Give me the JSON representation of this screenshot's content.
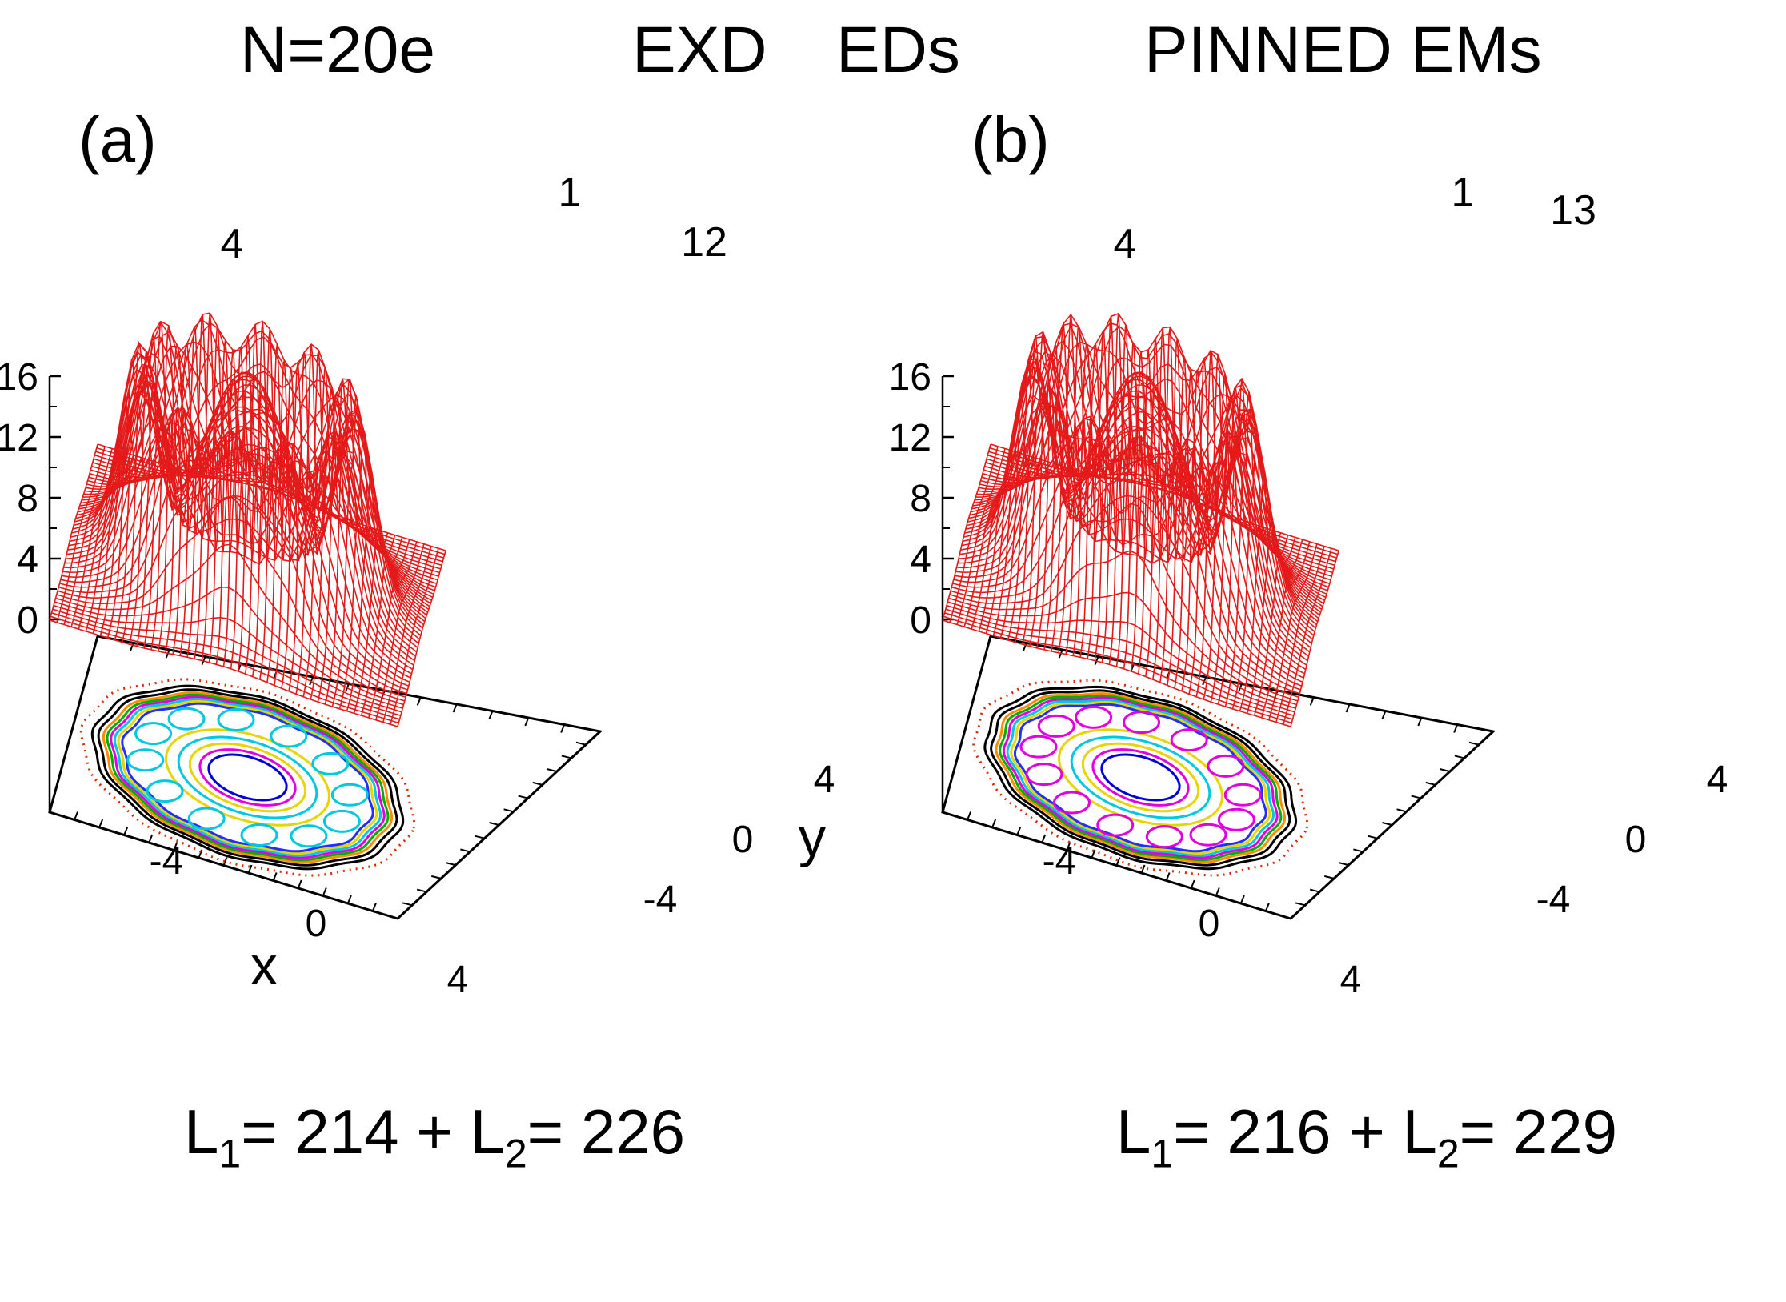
{
  "header": {
    "left": "N=20e",
    "middle_a": "EXD",
    "middle_b": "EDs",
    "right": "PINNED EMs"
  },
  "colors": {
    "surface": "#e41a1a",
    "contours": [
      "#d62b00",
      "#000000",
      "#e8d400",
      "#00c8e0",
      "#e000e0",
      "#0000dd",
      "#00b000",
      "#2030ff",
      "#ff8c00"
    ]
  },
  "chart_data": [
    {
      "type": "surface3d",
      "panel_label": "(a)",
      "zlim": [
        0,
        16
      ],
      "zticks": [
        "16",
        "12",
        "8",
        "4",
        "0"
      ],
      "xticks": [
        "-4",
        "0",
        "4"
      ],
      "yticks": [
        "-4",
        "0",
        "4"
      ],
      "xlabel": "x",
      "ylabel": "y",
      "outer_ring_peaks": 12,
      "peak_labels": [
        "1",
        "4",
        "12"
      ],
      "central_peak_height": 14,
      "ring_peak_height": 15.5,
      "footer": {
        "l1_label": "L",
        "l1_sub": "1",
        "l1_value": "= 214 +",
        "l2_label": "L",
        "l2_sub": "2",
        "l2_value": "= 226"
      }
    },
    {
      "type": "surface3d",
      "panel_label": "(b)",
      "zlim": [
        0,
        16
      ],
      "zticks": [
        "16",
        "12",
        "8",
        "4",
        "0"
      ],
      "xticks": [
        "-4",
        "0",
        "4"
      ],
      "yticks": [
        "-4",
        "0",
        "4"
      ],
      "xlabel": "",
      "ylabel": "",
      "outer_ring_peaks": 13,
      "peak_labels": [
        "1",
        "4",
        "13"
      ],
      "central_peak_height": 14,
      "ring_peak_height": 15.5,
      "footer": {
        "l1_label": "L",
        "l1_sub": "1",
        "l1_value": "= 216 +",
        "l2_label": "L",
        "l2_sub": "2",
        "l2_value": "= 229"
      }
    }
  ]
}
